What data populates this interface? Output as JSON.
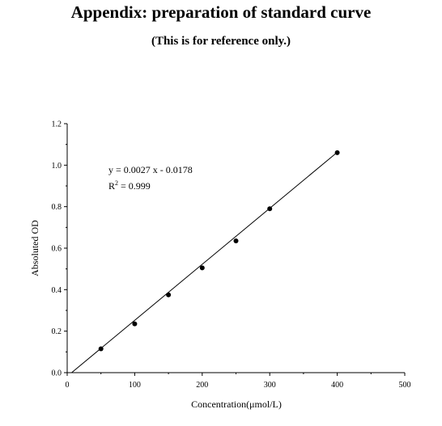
{
  "header": {
    "title": "Appendix: preparation of standard curve",
    "subtitle": "(This is for reference only.)"
  },
  "chart_data": {
    "type": "scatter",
    "xlabel": "Concentration(μmol/L)",
    "ylabel": "Absoluted OD",
    "xlim": [
      0,
      500
    ],
    "ylim": [
      0.0,
      1.2
    ],
    "xticks": [
      0,
      100,
      200,
      300,
      400,
      500
    ],
    "xtick_labels": [
      "0",
      "100",
      "200",
      "300",
      "400",
      "500"
    ],
    "yticks": [
      0.0,
      0.2,
      0.4,
      0.6,
      0.8,
      1.0,
      1.2
    ],
    "ytick_labels": [
      "0.0",
      "0.2",
      "0.4",
      "0.6",
      "0.8",
      "1.0",
      "1.2"
    ],
    "grid": false,
    "series": [
      {
        "x": [
          50,
          100,
          150,
          200,
          250,
          300,
          400
        ],
        "y": [
          0.115,
          0.235,
          0.375,
          0.505,
          0.635,
          0.79,
          1.06
        ]
      }
    ],
    "fit_line": {
      "slope": 0.0027,
      "intercept": -0.0178,
      "x_range": [
        0,
        400
      ]
    },
    "annotations": {
      "equation": "y = 0.0027 x - 0.0178",
      "r2_prefix": "R",
      "r2_sup": "2",
      "r2_value": " = 0.999"
    },
    "colors": {
      "marker": "#000000",
      "line": "#000000"
    }
  }
}
